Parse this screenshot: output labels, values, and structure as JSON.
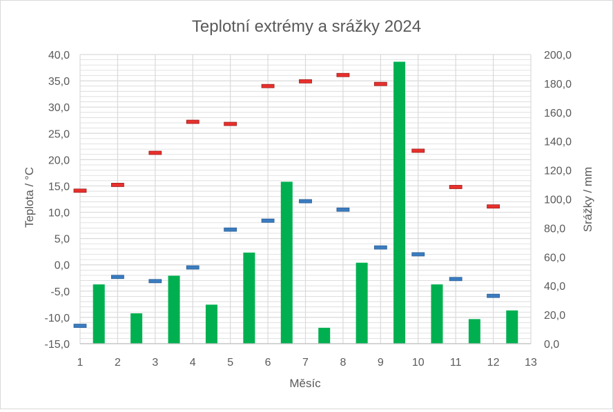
{
  "chart_data": {
    "type": "bar+scatter",
    "title": "Teplotní extrémy a srážky 2024",
    "xlabel": "Měsíc",
    "ylabel_left": "Teplota / °C",
    "ylabel_right": "Srážky / mm",
    "xlim": [
      1,
      13
    ],
    "x_ticks": [
      "1",
      "2",
      "3",
      "4",
      "5",
      "6",
      "7",
      "8",
      "9",
      "10",
      "11",
      "12",
      "13"
    ],
    "ylim_left": [
      -15,
      40
    ],
    "y_left_ticks": [
      "-15,0",
      "-10,0",
      "-5,0",
      "0,0",
      "5,0",
      "10,0",
      "15,0",
      "20,0",
      "25,0",
      "30,0",
      "35,0",
      "40,0"
    ],
    "ylim_right": [
      0,
      200
    ],
    "y_right_ticks": [
      "0,0",
      "20,0",
      "40,0",
      "60,0",
      "80,0",
      "100,0",
      "120,0",
      "140,0",
      "160,0",
      "180,0",
      "200,0"
    ],
    "grid": true,
    "colors": {
      "max_temp": "#e8302d",
      "min_temp": "#3a7cc0",
      "precip": "#00b050",
      "grid": "#d9d9d9",
      "text": "#595959"
    },
    "series": [
      {
        "kind": "max-temperature",
        "axis": "left",
        "x": [
          1,
          2,
          3,
          4,
          5,
          6,
          7,
          8,
          9,
          10,
          11,
          12
        ],
        "values": [
          14.1,
          15.2,
          21.3,
          27.2,
          26.8,
          34.0,
          34.9,
          36.1,
          34.4,
          21.7,
          14.8,
          11.1
        ]
      },
      {
        "kind": "min-temperature",
        "axis": "left",
        "x": [
          1,
          2,
          3,
          4,
          5,
          6,
          7,
          8,
          9,
          10,
          11,
          12
        ],
        "values": [
          -11.6,
          -2.3,
          -3.1,
          -0.5,
          6.7,
          8.4,
          12.1,
          10.5,
          3.3,
          2.0,
          -2.7,
          -5.9
        ]
      },
      {
        "kind": "precipitation",
        "axis": "right",
        "x": [
          1.5,
          2.5,
          3.5,
          4.5,
          5.5,
          6.5,
          7.5,
          8.5,
          9.5,
          10.5,
          11.5,
          12.5
        ],
        "values": [
          41,
          21,
          47,
          27,
          63,
          112,
          11,
          56,
          195,
          41,
          17,
          23
        ]
      }
    ]
  }
}
